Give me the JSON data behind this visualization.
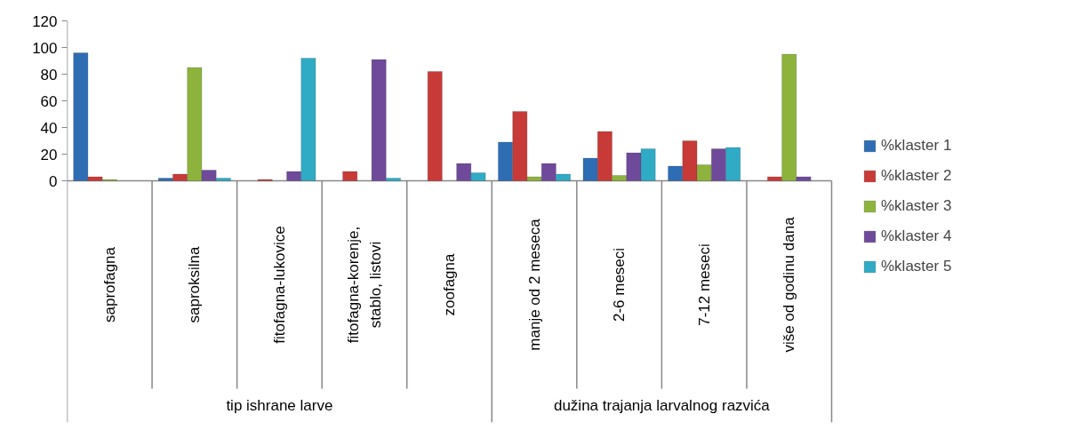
{
  "chart_data": {
    "type": "bar",
    "categories": [
      "saprofagna",
      "saproksilna",
      "fitofagna-lukovice",
      "fitofagna-korenje,\nstablo, listovi",
      "zoofagna",
      "manje od 2 meseca",
      "2-6 meseci",
      "7-12 meseci",
      "više od godinu dana"
    ],
    "series": [
      {
        "name": "%klaster 1",
        "color": "#2e6db4",
        "values": [
          96,
          2,
          null,
          null,
          null,
          29,
          17,
          11,
          null
        ]
      },
      {
        "name": "%klaster 2",
        "color": "#c83a37",
        "values": [
          3,
          5,
          1,
          7,
          82,
          52,
          37,
          30,
          3
        ]
      },
      {
        "name": "%klaster 3",
        "color": "#8db33c",
        "values": [
          1,
          85,
          null,
          null,
          null,
          3,
          4,
          12,
          95
        ]
      },
      {
        "name": "%klaster 4",
        "color": "#6f4a9a",
        "values": [
          null,
          8,
          7,
          91,
          13,
          13,
          21,
          24,
          3
        ]
      },
      {
        "name": "%klaster 5",
        "color": "#2fabc6",
        "values": [
          null,
          2,
          92,
          2,
          6,
          5,
          24,
          25,
          null
        ]
      }
    ],
    "annotations": [
      "tip ishrane larve",
      "dužina trajanja larvalnog razvića"
    ],
    "ylim": [
      0,
      120
    ],
    "yticks": [
      0,
      20,
      40,
      60,
      80,
      100,
      120
    ],
    "grid": false,
    "legend": "right"
  }
}
